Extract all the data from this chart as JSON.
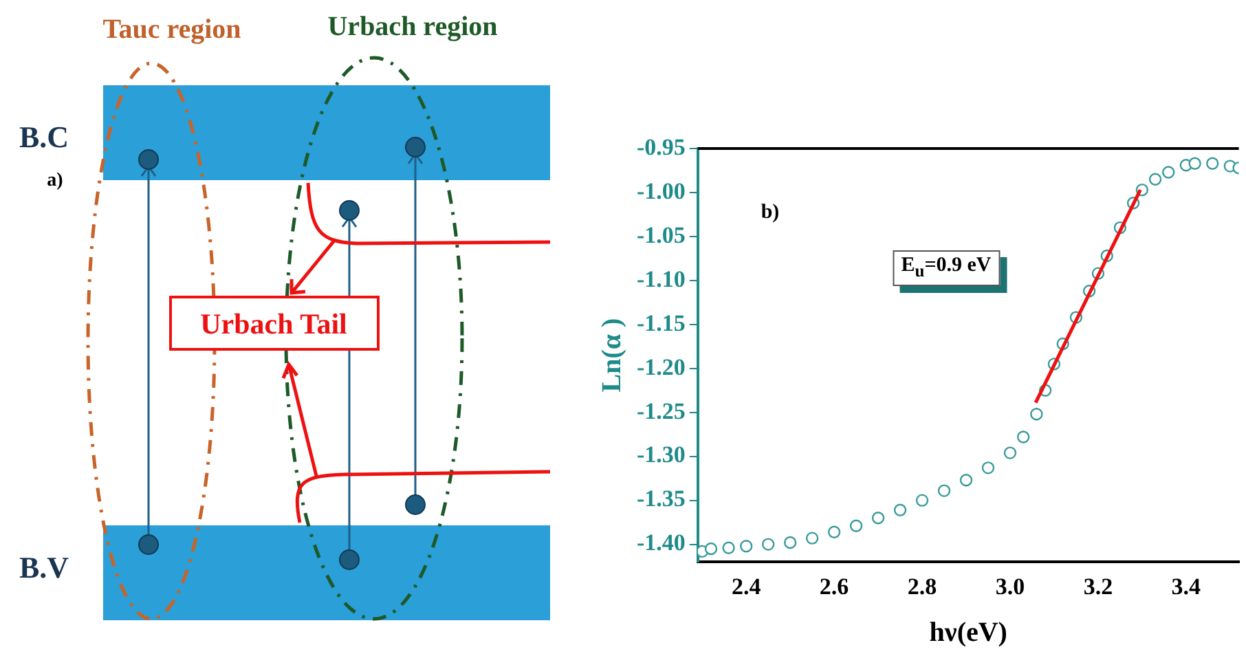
{
  "chart_data": [
    {
      "type": "other",
      "annotations": [
        "Tauc region",
        "Urbach region",
        "B.C",
        "a)",
        "B.V",
        "Urbach Tail"
      ]
    },
    {
      "type": "scatter",
      "xlabel": "hν(eV)",
      "ylabel": "Ln(α )",
      "annotations": [
        "b)",
        "E$_{u}$=0.9 eV"
      ],
      "xlim": [
        2.29,
        3.52
      ],
      "ylim": [
        -1.42,
        -0.95
      ],
      "xticks": [
        {
          "value": 2.4,
          "label": "2.4"
        },
        {
          "value": 2.6,
          "label": "2.6"
        },
        {
          "value": 2.8,
          "label": "2.8"
        },
        {
          "value": 3.0,
          "label": "3.0"
        },
        {
          "value": 3.2,
          "label": "3.2"
        },
        {
          "value": 3.4,
          "label": "3.4"
        }
      ],
      "yticks": [
        {
          "value": -0.95,
          "label": "-0.95"
        },
        {
          "value": -1.0,
          "label": "-1.00"
        },
        {
          "value": -1.05,
          "label": "-1.05"
        },
        {
          "value": -1.1,
          "label": "-1.10"
        },
        {
          "value": -1.15,
          "label": "-1.15"
        },
        {
          "value": -1.2,
          "label": "-1.20"
        },
        {
          "value": -1.25,
          "label": "-1.25"
        },
        {
          "value": -1.3,
          "label": "-1.30"
        },
        {
          "value": -1.35,
          "label": "-1.35"
        },
        {
          "value": -1.4,
          "label": "-1.40"
        }
      ],
      "series": [
        {
          "type": "scatter",
          "color": "#3a9a9a",
          "marker": "circle",
          "x": [
            2.3,
            2.32,
            2.36,
            2.4,
            2.45,
            2.5,
            2.55,
            2.6,
            2.65,
            2.7,
            2.75,
            2.8,
            2.85,
            2.9,
            2.95,
            3.0,
            3.03,
            3.06,
            3.08,
            3.1,
            3.12,
            3.15,
            3.18,
            3.2,
            3.22,
            3.25,
            3.28,
            3.3,
            3.33,
            3.36,
            3.4,
            3.42,
            3.46,
            3.5,
            3.52
          ],
          "values": [
            -1.408,
            -1.405,
            -1.404,
            -1.402,
            -1.4,
            -1.398,
            -1.393,
            -1.386,
            -1.379,
            -1.37,
            -1.361,
            -1.35,
            -1.339,
            -1.327,
            -1.313,
            -1.296,
            -1.278,
            -1.252,
            -1.225,
            -1.195,
            -1.172,
            -1.142,
            -1.112,
            -1.092,
            -1.072,
            -1.04,
            -1.012,
            -0.997,
            -0.985,
            -0.977,
            -0.969,
            -0.967,
            -0.967,
            -0.97,
            -0.972
          ]
        },
        {
          "type": "line",
          "color": "#ee1111",
          "marker": "none",
          "x": [
            3.058,
            3.296
          ],
          "values": [
            -1.239,
            -0.997
          ]
        }
      ]
    }
  ]
}
